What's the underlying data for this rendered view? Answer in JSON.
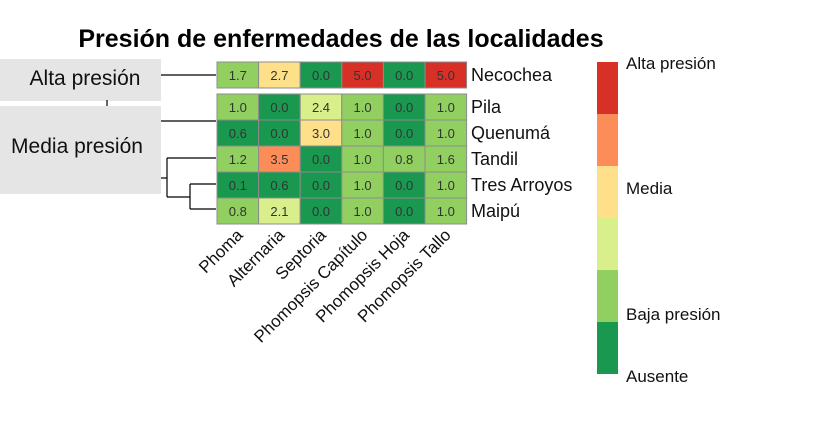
{
  "chart_data": {
    "type": "heatmap",
    "title": "Presión de enfermedades de las localidades",
    "rows": [
      "Necochea",
      "Pila",
      "Quenumá",
      "Tandil",
      "Tres Arroyos",
      "Maipú"
    ],
    "columns": [
      "Phoma",
      "Alternaria",
      "Septoria",
      "Phomopsis Capítulo",
      "Phomopsis Hoja",
      "Phomopsis Tallo"
    ],
    "values": [
      [
        "1.7",
        "2.7",
        "0.0",
        "5.0",
        "0.0",
        "5.0"
      ],
      [
        "1.0",
        "0.0",
        "2.4",
        "1.0",
        "0.0",
        "1.0"
      ],
      [
        "0.6",
        "0.0",
        "3.0",
        "1.0",
        "0.0",
        "1.0"
      ],
      [
        "1.2",
        "3.5",
        "0.0",
        "1.0",
        "0.8",
        "1.6"
      ],
      [
        "0.1",
        "0.6",
        "0.0",
        "1.0",
        "0.0",
        "1.0"
      ],
      [
        "0.8",
        "2.1",
        "0.0",
        "1.0",
        "0.0",
        "1.0"
      ]
    ],
    "groups": [
      {
        "label": "Alta presión",
        "rows": [
          "Necochea"
        ]
      },
      {
        "label": "Media presión",
        "rows": [
          "Pila",
          "Quenumá",
          "Tandil",
          "Tres Arroyos",
          "Maipú"
        ]
      }
    ],
    "color_scale": [
      {
        "color": "#D73027",
        "label": "Alta presión"
      },
      {
        "color": "#FC8D59",
        "label": ""
      },
      {
        "color": "#FEE08B",
        "label": "Media"
      },
      {
        "color": "#D9EF8B",
        "label": ""
      },
      {
        "color": "#91CF60",
        "label": "Baja presión"
      },
      {
        "color": "#1A9850",
        "label": "Ausente"
      }
    ]
  }
}
